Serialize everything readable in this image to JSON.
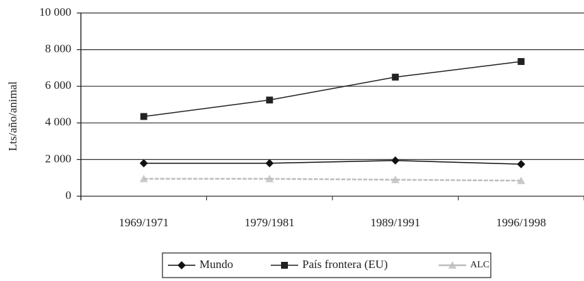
{
  "chart_data": {
    "type": "line",
    "ylabel": "Lts/año/animal",
    "categories": [
      "1969/1971",
      "1979/1981",
      "1989/1991",
      "1996/1998"
    ],
    "series": [
      {
        "name": "Mundo",
        "color": "#111111",
        "marker": "diamond",
        "values": [
          1800,
          1800,
          1950,
          1750
        ]
      },
      {
        "name": "País frontera (EU)",
        "color": "#222222",
        "marker": "square",
        "values": [
          4350,
          5250,
          6500,
          7350
        ]
      },
      {
        "name": "ALC",
        "color": "#bdbdbd",
        "marker": "triangle",
        "values": [
          950,
          950,
          900,
          850
        ]
      }
    ],
    "ylim": [
      0,
      10000
    ],
    "yticks": [
      0,
      {
        "value": 2000,
        "label": "2 000"
      },
      {
        "value": 4000,
        "label": "4 000"
      },
      {
        "value": 6000,
        "label": "6 000"
      },
      {
        "value": 8000,
        "label": "8 000"
      },
      {
        "value": 10000,
        "label": "10 000"
      }
    ],
    "grid": true,
    "legend": "bottom"
  }
}
